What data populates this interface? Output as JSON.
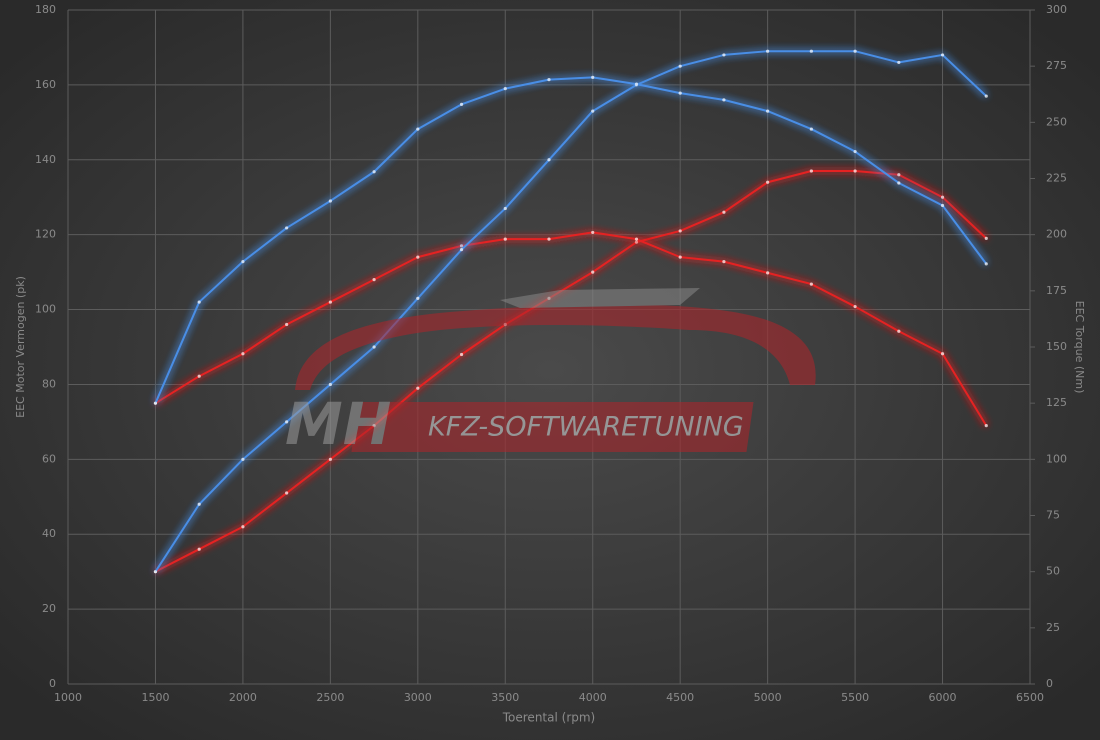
{
  "chart_data": {
    "type": "line",
    "watermark": {
      "brand": "MH",
      "text": "KFZ-SOFTWARETUNING"
    },
    "x_label": "Toerental (rpm)",
    "y_label": "EEC Motor Vermogen (pk)",
    "y2_label": "EEC Torque (Nm)",
    "x": [
      1500,
      1750,
      2000,
      2250,
      2500,
      2750,
      3000,
      3250,
      3500,
      3750,
      4000,
      4250,
      4500,
      4750,
      5000,
      5250,
      5500,
      5750,
      6000,
      6250
    ],
    "series": [
      {
        "color": "#4a8ee6",
        "axis": "y",
        "values": [
          30,
          48,
          60,
          70,
          80,
          90,
          103,
          116,
          127,
          140,
          153,
          160,
          165,
          168,
          169,
          169,
          169,
          166,
          168,
          157
        ]
      },
      {
        "color": "#4a8ee6",
        "axis": "y2",
        "values": [
          125,
          170,
          188,
          203,
          215,
          228,
          247,
          258,
          265,
          269,
          270,
          267,
          263,
          260,
          255,
          247,
          237,
          223,
          213,
          187
        ]
      },
      {
        "color": "#e52424",
        "axis": "y",
        "values": [
          30,
          36,
          42,
          51,
          60,
          69,
          79,
          88,
          96,
          103,
          110,
          118,
          121,
          126,
          134,
          137,
          137,
          136,
          130,
          119
        ]
      },
      {
        "color": "#e52424",
        "axis": "y2",
        "values": [
          125,
          137,
          147,
          160,
          170,
          180,
          190,
          195,
          198,
          198,
          201,
          198,
          190,
          188,
          183,
          178,
          168,
          157,
          147,
          115
        ]
      }
    ],
    "xlim": [
      1000,
      6500
    ],
    "xticks": [
      1000,
      1500,
      2000,
      2500,
      3000,
      3500,
      4000,
      4500,
      5000,
      5500,
      6000,
      6500
    ],
    "ylim": [
      0,
      180
    ],
    "yticks": [
      0,
      20,
      40,
      60,
      80,
      100,
      120,
      140,
      160,
      180
    ],
    "y2lim": [
      0,
      300
    ],
    "y2ticks": [
      0,
      25,
      50,
      75,
      100,
      125,
      150,
      175,
      200,
      225,
      250,
      275,
      300
    ],
    "grid": true
  }
}
